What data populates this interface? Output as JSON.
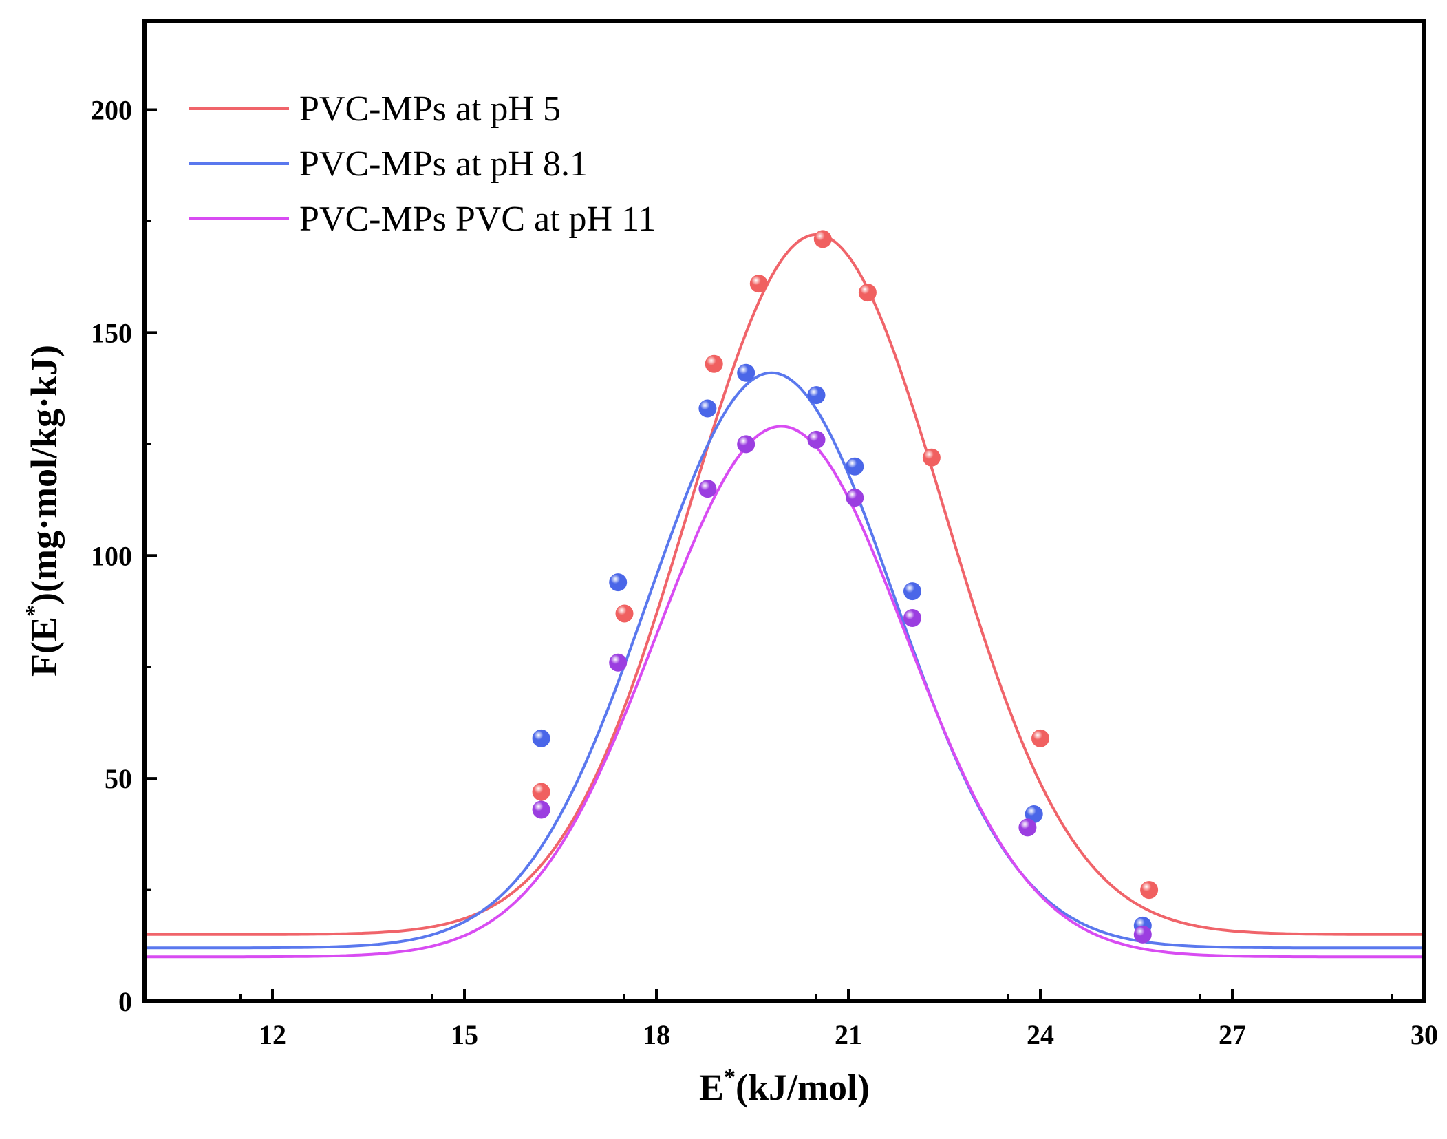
{
  "chart_data": {
    "type": "line",
    "title": "",
    "xlabel": {
      "prefix": "E",
      "sup": "*",
      "suffix": "(kJ/mol)"
    },
    "ylabel": {
      "prefix": "F(E",
      "sup": "*",
      "suffix": ")(mg·mol/kg·kJ)"
    },
    "xlim": [
      10,
      30
    ],
    "ylim": [
      0,
      220
    ],
    "xticks": [
      12,
      15,
      18,
      21,
      24,
      27,
      30
    ],
    "yticks": [
      0,
      50,
      100,
      150,
      200
    ],
    "grid": false,
    "legend_position": "top-left",
    "series": [
      {
        "name": "PVC-MPs at pH 5",
        "color": "#f0646a",
        "marker_color": "#f06060",
        "fit": {
          "baseline": 15,
          "amplitude": 157,
          "center": 20.5,
          "sigma": 2.0
        },
        "points": [
          {
            "x": 16.2,
            "y": 47
          },
          {
            "x": 17.5,
            "y": 87
          },
          {
            "x": 18.9,
            "y": 143
          },
          {
            "x": 19.6,
            "y": 161
          },
          {
            "x": 20.6,
            "y": 171
          },
          {
            "x": 21.3,
            "y": 159
          },
          {
            "x": 22.3,
            "y": 122
          },
          {
            "x": 24.0,
            "y": 59
          },
          {
            "x": 25.7,
            "y": 25
          }
        ]
      },
      {
        "name": "PVC-MPs at pH 8.1",
        "color": "#5a78ee",
        "marker_color": "#4a66e8",
        "fit": {
          "baseline": 12,
          "amplitude": 129,
          "center": 19.8,
          "sigma": 1.93
        },
        "points": [
          {
            "x": 16.2,
            "y": 59
          },
          {
            "x": 17.4,
            "y": 94
          },
          {
            "x": 18.8,
            "y": 133
          },
          {
            "x": 19.4,
            "y": 141
          },
          {
            "x": 20.5,
            "y": 136
          },
          {
            "x": 21.1,
            "y": 120
          },
          {
            "x": 22.0,
            "y": 92
          },
          {
            "x": 23.9,
            "y": 42
          },
          {
            "x": 25.6,
            "y": 17
          }
        ]
      },
      {
        "name": "PVC-MPs PVC at pH 11",
        "color": "#d84cf2",
        "marker_color": "#9b3ee0",
        "fit": {
          "baseline": 10,
          "amplitude": 119,
          "center": 19.95,
          "sigma": 1.95
        },
        "points": [
          {
            "x": 16.2,
            "y": 43
          },
          {
            "x": 17.4,
            "y": 76
          },
          {
            "x": 18.8,
            "y": 115
          },
          {
            "x": 19.4,
            "y": 125
          },
          {
            "x": 20.5,
            "y": 126
          },
          {
            "x": 21.1,
            "y": 113
          },
          {
            "x": 22.0,
            "y": 86
          },
          {
            "x": 23.8,
            "y": 39
          },
          {
            "x": 25.6,
            "y": 15
          }
        ]
      }
    ]
  }
}
